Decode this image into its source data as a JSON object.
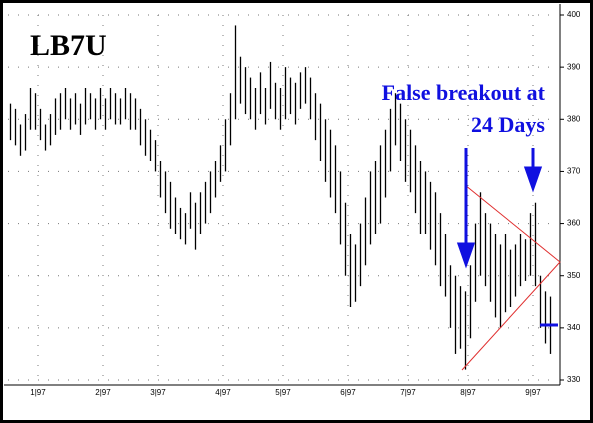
{
  "chart_data": {
    "type": "hilo",
    "title": "LB7U",
    "annotation": [
      "False breakout at",
      "24 Days"
    ],
    "color": "#000000",
    "highs": [
      383,
      382,
      379,
      381,
      386,
      385,
      382,
      379,
      381,
      384,
      385,
      386,
      384,
      385,
      383,
      386,
      385,
      384,
      386,
      384,
      386,
      385,
      384,
      386,
      385,
      384,
      382,
      380,
      378,
      376,
      372,
      370,
      368,
      365,
      363,
      362,
      366,
      364,
      366,
      368,
      370,
      372,
      375,
      380,
      385,
      398,
      392,
      390,
      388,
      386,
      389,
      386,
      391,
      387,
      386,
      390,
      388,
      387,
      389,
      390,
      388,
      385,
      383,
      380,
      378,
      375,
      370,
      364,
      358,
      356,
      360,
      365,
      370,
      372,
      375,
      378,
      382,
      385,
      383,
      380,
      378,
      375,
      372,
      370,
      368,
      366,
      362,
      358,
      352,
      350,
      348,
      347,
      352,
      360,
      366,
      362,
      360,
      358,
      356,
      358,
      355,
      356,
      358,
      357,
      362,
      364,
      350,
      347,
      346
    ],
    "lows": [
      376,
      375,
      373,
      374,
      378,
      378,
      376,
      374,
      375,
      377,
      378,
      380,
      378,
      379,
      377,
      379,
      380,
      378,
      380,
      378,
      380,
      379,
      379,
      380,
      378,
      378,
      375,
      373,
      372,
      370,
      365,
      362,
      359,
      358,
      357,
      356,
      359,
      355,
      358,
      360,
      362,
      365,
      368,
      370,
      375,
      380,
      383,
      381,
      380,
      378,
      381,
      379,
      382,
      380,
      378,
      380,
      381,
      379,
      382,
      383,
      380,
      376,
      372,
      368,
      365,
      362,
      356,
      350,
      344,
      345,
      348,
      352,
      356,
      358,
      360,
      365,
      370,
      375,
      372,
      368,
      366,
      362,
      358,
      358,
      355,
      352,
      348,
      346,
      340,
      335,
      336,
      332,
      338,
      345,
      350,
      348,
      345,
      342,
      340,
      343,
      344,
      346,
      348,
      349,
      350,
      348,
      340,
      337,
      335
    ],
    "xlim": [
      0,
      110
    ],
    "xticks": [
      {
        "value": 6,
        "label": "1|97"
      },
      {
        "value": 19,
        "label": "2|97"
      },
      {
        "value": 30,
        "label": "3|97"
      },
      {
        "value": 43,
        "label": "4|97"
      },
      {
        "value": 55,
        "label": "5|97"
      },
      {
        "value": 68,
        "label": "6|97"
      },
      {
        "value": 80,
        "label": "7|97"
      },
      {
        "value": 92,
        "label": "8|97"
      },
      {
        "value": 105,
        "label": "9|97"
      }
    ],
    "ylim": [
      330,
      400
    ],
    "yticks": [
      330,
      340,
      350,
      360,
      370,
      380,
      390,
      400
    ],
    "grid": true
  }
}
